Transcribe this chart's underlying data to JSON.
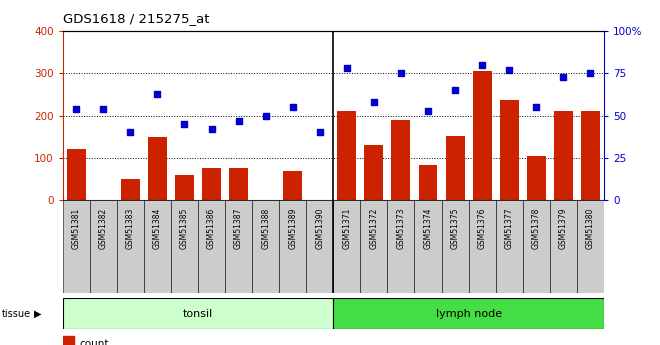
{
  "title": "GDS1618 / 215275_at",
  "samples": [
    "GSM51381",
    "GSM51382",
    "GSM51383",
    "GSM51384",
    "GSM51385",
    "GSM51386",
    "GSM51387",
    "GSM51388",
    "GSM51389",
    "GSM51390",
    "GSM51371",
    "GSM51372",
    "GSM51373",
    "GSM51374",
    "GSM51375",
    "GSM51376",
    "GSM51377",
    "GSM51378",
    "GSM51379",
    "GSM51380"
  ],
  "counts": [
    120,
    0,
    50,
    150,
    60,
    75,
    75,
    0,
    70,
    0,
    210,
    130,
    190,
    83,
    152,
    305,
    238,
    105,
    210,
    210
  ],
  "percentiles": [
    54,
    54,
    40,
    63,
    45,
    42,
    47,
    50,
    55,
    40,
    78,
    58,
    75,
    53,
    65,
    80,
    77,
    55,
    73,
    75
  ],
  "tonsil_count": 10,
  "lymph_count": 10,
  "tissue_labels": [
    "tonsil",
    "lymph node"
  ],
  "bar_color": "#cc2200",
  "dot_color": "#0000cc",
  "tonsil_bg": "#ccffcc",
  "lymph_bg": "#44dd44",
  "xticklabel_bg": "#cccccc",
  "plot_bg": "#ffffff",
  "left_ylim": [
    0,
    400
  ],
  "right_ylim": [
    0,
    100
  ],
  "left_yticks": [
    0,
    100,
    200,
    300,
    400
  ],
  "right_yticks": [
    0,
    25,
    50,
    75,
    100
  ],
  "right_yticklabels": [
    "0",
    "25",
    "50",
    "75",
    "100%"
  ]
}
